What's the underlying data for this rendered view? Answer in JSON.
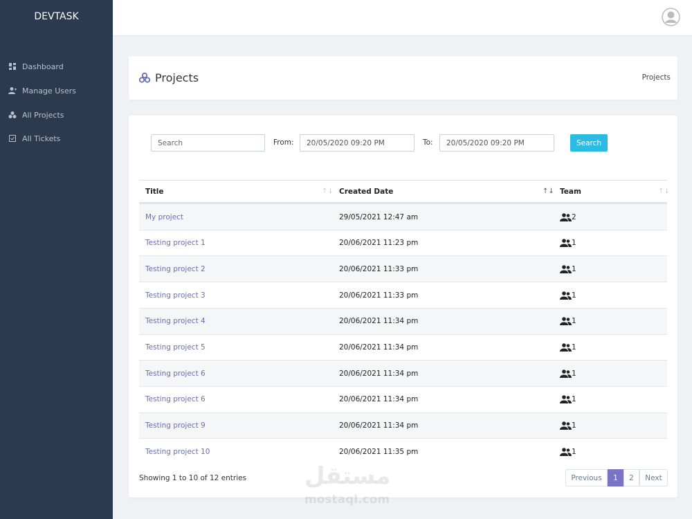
{
  "sidebar": {
    "brand": "DEVTASK",
    "menu": [
      "Dashboard",
      "Manage Users",
      "All Projects",
      "All Tickets"
    ]
  },
  "header": {
    "title": "Projects",
    "breadcrumb": "Projects"
  },
  "filters": {
    "search_placeholder": "Search",
    "from_label": "From:",
    "from_value": "20/05/2020 09:20 PM",
    "to_label": "To:",
    "to_value": "20/05/2020 09:20 PM",
    "button": "Search"
  },
  "table": {
    "columns": [
      "Title",
      "Created Date",
      "Team"
    ],
    "rows": [
      [
        "My project",
        "29/05/2021 12:47 am",
        2
      ],
      [
        "Testing project 1",
        "20/06/2021 11:23 pm",
        1
      ],
      [
        "Testing project 2",
        "20/06/2021 11:33 pm",
        1
      ],
      [
        "Testing project 3",
        "20/06/2021 11:33 pm",
        1
      ],
      [
        "Testing project 4",
        "20/06/2021 11:34 pm",
        1
      ],
      [
        "Testing project 5",
        "20/06/2021 11:34 pm",
        1
      ],
      [
        "Testing project 6",
        "20/06/2021 11:34 pm",
        1
      ],
      [
        "Testing project 6",
        "20/06/2021 11:34 pm",
        1
      ],
      [
        "Testing project 9",
        "20/06/2021 11:34 pm",
        1
      ],
      [
        "Testing project 10",
        "20/06/2021 11:35 pm",
        1
      ]
    ]
  },
  "footer": {
    "info": "Showing 1 to 10 of 12 entries",
    "pagination": [
      "Previous",
      "1",
      "2",
      "Next"
    ]
  },
  "watermark": {
    "arabic": "مستقل",
    "latin": "mostaql.com"
  }
}
